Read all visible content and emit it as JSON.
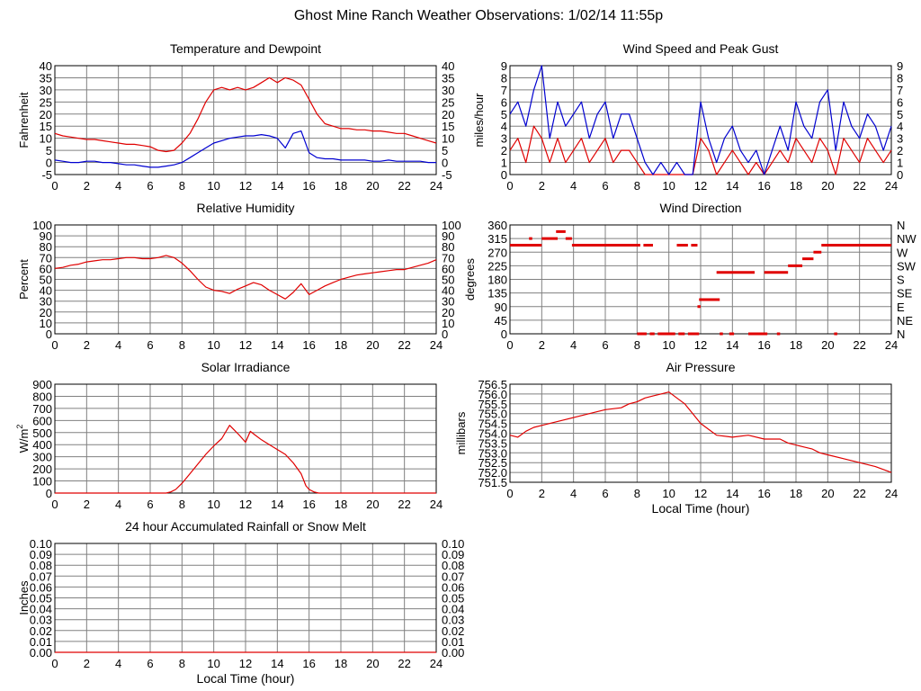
{
  "page": {
    "title": "Ghost Mine Ranch Weather Observations: 1/02/14 11:55p"
  },
  "colors": {
    "series_red": "#e00000",
    "series_blue": "#0000d0",
    "grid": "#808080",
    "frame": "#000000"
  },
  "chart_data": [
    {
      "id": "temperature",
      "type": "line",
      "title": "Temperature and Dewpoint",
      "ylabel": "Fahrenheit",
      "xlabel": "",
      "xlim": [
        0,
        24
      ],
      "ylim": [
        -5,
        40
      ],
      "x_ticks": [
        "0",
        "2",
        "4",
        "6",
        "8",
        "10",
        "12",
        "14",
        "16",
        "18",
        "20",
        "22",
        "24"
      ],
      "y_ticks": [
        "-5",
        "0",
        "5",
        "10",
        "15",
        "20",
        "25",
        "30",
        "35",
        "40"
      ],
      "y_ticks_right": [
        "-5",
        "0",
        "5",
        "10",
        "15",
        "20",
        "25",
        "30",
        "35",
        "40"
      ],
      "grid": true,
      "series": [
        {
          "color": "#e00000",
          "x": [
            0,
            0.5,
            1,
            1.5,
            2,
            2.5,
            3,
            3.5,
            4,
            4.5,
            5,
            5.5,
            6,
            6.5,
            7,
            7.5,
            8,
            8.5,
            9,
            9.5,
            10,
            10.5,
            11,
            11.5,
            12,
            12.5,
            13,
            13.5,
            14,
            14.5,
            15,
            15.5,
            16,
            16.5,
            17,
            17.5,
            18,
            18.5,
            19,
            19.5,
            20,
            20.5,
            21,
            21.5,
            22,
            22.5,
            23,
            23.5,
            24
          ],
          "y": [
            12,
            11,
            10.5,
            10,
            9.5,
            9.5,
            9,
            8.5,
            8,
            7.5,
            7.5,
            7,
            6.5,
            5,
            4.5,
            5,
            8,
            12,
            18,
            25,
            30,
            31,
            30,
            31,
            30,
            31,
            33,
            35,
            33,
            35,
            34,
            32,
            26,
            20,
            16,
            15,
            14,
            14,
            13.5,
            13.5,
            13,
            13,
            12.5,
            12,
            12,
            11,
            10,
            9,
            8
          ]
        },
        {
          "color": "#0000d0",
          "x": [
            0,
            0.5,
            1,
            1.5,
            2,
            2.5,
            3,
            3.5,
            4,
            4.5,
            5,
            5.5,
            6,
            6.5,
            7,
            7.5,
            8,
            8.5,
            9,
            9.5,
            10,
            10.5,
            11,
            11.5,
            12,
            12.5,
            13,
            13.5,
            14,
            14.5,
            15,
            15.5,
            16,
            16.5,
            17,
            17.5,
            18,
            18.5,
            19,
            19.5,
            20,
            20.5,
            21,
            21.5,
            22,
            22.5,
            23,
            23.5,
            24
          ],
          "y": [
            1,
            0.5,
            0,
            0,
            0.5,
            0.5,
            0,
            0,
            -0.5,
            -1,
            -1,
            -1.5,
            -2,
            -2,
            -1.5,
            -1,
            0,
            2,
            4,
            6,
            8,
            9,
            10,
            10.5,
            11,
            11,
            11.5,
            11,
            10,
            6,
            12,
            13,
            4,
            2,
            1.5,
            1.5,
            1,
            1,
            1,
            1,
            0.5,
            0.5,
            1,
            0.5,
            0.5,
            0.5,
            0.5,
            0,
            0
          ]
        }
      ]
    },
    {
      "id": "wind_speed",
      "type": "line",
      "title": "Wind Speed and Peak Gust",
      "ylabel": "miles/hour",
      "xlabel": "",
      "xlim": [
        0,
        24
      ],
      "ylim": [
        0,
        9
      ],
      "x_ticks": [
        "0",
        "2",
        "4",
        "6",
        "8",
        "10",
        "12",
        "14",
        "16",
        "18",
        "20",
        "22",
        "24"
      ],
      "y_ticks": [
        "0",
        "1",
        "2",
        "3",
        "4",
        "5",
        "6",
        "7",
        "8",
        "9"
      ],
      "y_ticks_right": [
        "0",
        "1",
        "2",
        "3",
        "4",
        "5",
        "6",
        "7",
        "8",
        "9"
      ],
      "grid": true,
      "series": [
        {
          "color": "#e00000",
          "x": [
            0,
            0.5,
            1,
            1.5,
            2,
            2.5,
            3,
            3.5,
            4,
            4.5,
            5,
            5.5,
            6,
            6.5,
            7,
            7.5,
            8,
            8.5,
            9,
            9.5,
            10,
            10.5,
            11,
            11.5,
            12,
            12.5,
            13,
            13.5,
            14,
            14.5,
            15,
            15.5,
            16,
            16.5,
            17,
            17.5,
            18,
            18.5,
            19,
            19.5,
            20,
            20.5,
            21,
            21.5,
            22,
            22.5,
            23,
            23.5,
            24
          ],
          "y": [
            2,
            3,
            1,
            4,
            3,
            1,
            3,
            1,
            2,
            3,
            1,
            2,
            3,
            1,
            2,
            2,
            1,
            0,
            0,
            0,
            0,
            0,
            0,
            0,
            3,
            2,
            0,
            1,
            2,
            1,
            0,
            1,
            0,
            1,
            2,
            1,
            3,
            2,
            1,
            3,
            2,
            0,
            3,
            2,
            1,
            3,
            2,
            1,
            2
          ]
        },
        {
          "color": "#0000d0",
          "x": [
            0,
            0.5,
            1,
            1.5,
            2,
            2.5,
            3,
            3.5,
            4,
            4.5,
            5,
            5.5,
            6,
            6.5,
            7,
            7.5,
            8,
            8.5,
            9,
            9.5,
            10,
            10.5,
            11,
            11.5,
            12,
            12.5,
            13,
            13.5,
            14,
            14.5,
            15,
            15.5,
            16,
            16.5,
            17,
            17.5,
            18,
            18.5,
            19,
            19.5,
            20,
            20.5,
            21,
            21.5,
            22,
            22.5,
            23,
            23.5,
            24
          ],
          "y": [
            5,
            6,
            4,
            7,
            9,
            3,
            6,
            4,
            5,
            6,
            3,
            5,
            6,
            3,
            5,
            5,
            3,
            1,
            0,
            1,
            0,
            1,
            0,
            0,
            6,
            3,
            1,
            3,
            4,
            2,
            1,
            2,
            0,
            2,
            4,
            2,
            6,
            4,
            3,
            6,
            7,
            2,
            6,
            4,
            3,
            5,
            4,
            2,
            4
          ]
        }
      ]
    },
    {
      "id": "humidity",
      "type": "line",
      "title": "Relative Humidity",
      "ylabel": "Percent",
      "xlabel": "",
      "xlim": [
        0,
        24
      ],
      "ylim": [
        0,
        100
      ],
      "x_ticks": [
        "0",
        "2",
        "4",
        "6",
        "8",
        "10",
        "12",
        "14",
        "16",
        "18",
        "20",
        "22",
        "24"
      ],
      "y_ticks": [
        "0",
        "10",
        "20",
        "30",
        "40",
        "50",
        "60",
        "70",
        "80",
        "90",
        "100"
      ],
      "y_ticks_right": [
        "0",
        "10",
        "20",
        "30",
        "40",
        "50",
        "60",
        "70",
        "80",
        "90",
        "100"
      ],
      "grid": true,
      "series": [
        {
          "color": "#e00000",
          "x": [
            0,
            0.5,
            1,
            1.5,
            2,
            2.5,
            3,
            3.5,
            4,
            4.5,
            5,
            5.5,
            6,
            6.5,
            7,
            7.5,
            8,
            8.5,
            9,
            9.5,
            10,
            10.5,
            11,
            11.5,
            12,
            12.5,
            13,
            13.5,
            14,
            14.5,
            15,
            15.5,
            16,
            16.5,
            17,
            17.5,
            18,
            18.5,
            19,
            19.5,
            20,
            20.5,
            21,
            21.5,
            22,
            22.5,
            23,
            23.5,
            24
          ],
          "y": [
            60,
            61,
            63,
            64,
            66,
            67,
            68,
            68,
            69,
            70,
            70,
            69,
            69,
            70,
            72,
            70,
            65,
            58,
            50,
            43,
            40,
            39,
            37,
            41,
            44,
            47,
            45,
            40,
            36,
            32,
            38,
            46,
            36,
            40,
            44,
            47,
            50,
            52,
            54,
            55,
            56,
            57,
            58,
            59,
            59,
            61,
            63,
            65,
            68
          ]
        }
      ]
    },
    {
      "id": "wind_direction",
      "type": "scatter",
      "title": "Wind Direction",
      "ylabel": "degrees",
      "xlabel": "",
      "xlim": [
        0,
        24
      ],
      "ylim": [
        0,
        360
      ],
      "x_ticks": [
        "0",
        "2",
        "4",
        "6",
        "8",
        "10",
        "12",
        "14",
        "16",
        "18",
        "20",
        "22",
        "24"
      ],
      "y_ticks": [
        "0",
        "45",
        "90",
        "135",
        "180",
        "225",
        "270",
        "315",
        "360"
      ],
      "y_ticks_right": [
        "N",
        "NE",
        "E",
        "SE",
        "S",
        "SW",
        "W",
        "NW",
        "N"
      ],
      "grid": true,
      "segments": [
        {
          "x0": 0,
          "x1": 2.0,
          "y": 293
        },
        {
          "x0": 1.2,
          "x1": 1.4,
          "y": 315
        },
        {
          "x0": 2.0,
          "x1": 3.0,
          "y": 315
        },
        {
          "x0": 2.9,
          "x1": 3.5,
          "y": 338
        },
        {
          "x0": 3.5,
          "x1": 3.9,
          "y": 315
        },
        {
          "x0": 3.9,
          "x1": 8.2,
          "y": 293
        },
        {
          "x0": 8.4,
          "x1": 9.0,
          "y": 293
        },
        {
          "x0": 10.5,
          "x1": 11.2,
          "y": 293
        },
        {
          "x0": 11.4,
          "x1": 11.8,
          "y": 293
        },
        {
          "x0": 8.0,
          "x1": 8.6,
          "y": 0
        },
        {
          "x0": 8.8,
          "x1": 9.1,
          "y": 0
        },
        {
          "x0": 9.3,
          "x1": 10.4,
          "y": 0
        },
        {
          "x0": 10.6,
          "x1": 11.0,
          "y": 0
        },
        {
          "x0": 11.2,
          "x1": 11.9,
          "y": 0
        },
        {
          "x0": 11.8,
          "x1": 12.0,
          "y": 90
        },
        {
          "x0": 11.9,
          "x1": 13.2,
          "y": 113
        },
        {
          "x0": 13.0,
          "x1": 15.4,
          "y": 203
        },
        {
          "x0": 13.2,
          "x1": 13.4,
          "y": 0
        },
        {
          "x0": 13.8,
          "x1": 14.1,
          "y": 0
        },
        {
          "x0": 15.0,
          "x1": 16.2,
          "y": 0
        },
        {
          "x0": 16.8,
          "x1": 17.0,
          "y": 0
        },
        {
          "x0": 16.0,
          "x1": 17.5,
          "y": 203
        },
        {
          "x0": 17.5,
          "x1": 18.4,
          "y": 225
        },
        {
          "x0": 18.4,
          "x1": 19.1,
          "y": 248
        },
        {
          "x0": 19.1,
          "x1": 19.6,
          "y": 270
        },
        {
          "x0": 19.6,
          "x1": 24.0,
          "y": 293
        },
        {
          "x0": 20.4,
          "x1": 20.6,
          "y": 0
        }
      ]
    },
    {
      "id": "solar",
      "type": "area",
      "title": "Solar Irradiance",
      "ylabel": "W/m",
      "ylabel_sup": "2",
      "xlabel": "",
      "xlim": [
        0,
        24
      ],
      "ylim": [
        0,
        900
      ],
      "x_ticks": [
        "0",
        "2",
        "4",
        "6",
        "8",
        "10",
        "12",
        "14",
        "16",
        "18",
        "20",
        "22",
        "24"
      ],
      "y_ticks": [
        "0",
        "100",
        "200",
        "300",
        "400",
        "500",
        "600",
        "700",
        "800",
        "900"
      ],
      "grid": true,
      "series": [
        {
          "color": "#e00000",
          "x": [
            0,
            7,
            7.3,
            7.6,
            8,
            8.5,
            9,
            9.5,
            10,
            10.5,
            11,
            11.3,
            11.6,
            12,
            12.3,
            12.6,
            13,
            13.5,
            14,
            14.5,
            15,
            15.5,
            15.8,
            16,
            16.3,
            16.6,
            17,
            24
          ],
          "y": [
            0,
            0,
            10,
            30,
            80,
            160,
            240,
            320,
            390,
            450,
            560,
            520,
            480,
            420,
            510,
            480,
            440,
            400,
            360,
            320,
            250,
            160,
            60,
            30,
            10,
            0,
            0,
            0
          ]
        }
      ]
    },
    {
      "id": "pressure",
      "type": "line",
      "title": "Air Pressure",
      "ylabel": "millibars",
      "xlabel": "Local Time (hour)",
      "xlim": [
        0,
        24
      ],
      "ylim": [
        751.5,
        756.5
      ],
      "x_ticks": [
        "0",
        "2",
        "4",
        "6",
        "8",
        "10",
        "12",
        "14",
        "16",
        "18",
        "20",
        "22",
        "24"
      ],
      "y_ticks": [
        "751.5",
        "752.0",
        "752.5",
        "753.0",
        "753.5",
        "754.0",
        "754.5",
        "755.0",
        "755.5",
        "756.0",
        "756.5"
      ],
      "grid": true,
      "series": [
        {
          "color": "#e00000",
          "x": [
            0,
            0.5,
            1,
            1.5,
            2,
            3,
            4,
            5,
            6,
            7,
            7.5,
            8,
            8.5,
            9,
            9.5,
            10,
            10.5,
            11,
            11.5,
            12,
            12.5,
            13,
            14,
            15,
            16,
            17,
            17.5,
            18,
            18.5,
            19,
            19.5,
            20,
            21,
            22,
            23,
            24
          ],
          "y": [
            753.9,
            753.8,
            754.1,
            754.3,
            754.4,
            754.6,
            754.8,
            755.0,
            755.2,
            755.3,
            755.5,
            755.6,
            755.8,
            755.9,
            756.0,
            756.1,
            755.8,
            755.5,
            755.0,
            754.5,
            754.2,
            753.9,
            753.8,
            753.9,
            753.7,
            753.7,
            753.5,
            753.4,
            753.3,
            753.2,
            753.0,
            752.9,
            752.7,
            752.5,
            752.3,
            752.0
          ]
        }
      ]
    },
    {
      "id": "rainfall",
      "type": "line",
      "title": "24 hour Accumulated Rainfall or Snow Melt",
      "ylabel": "Inches",
      "xlabel": "Local Time (hour)",
      "xlim": [
        0,
        24
      ],
      "ylim": [
        0,
        0.1
      ],
      "x_ticks": [
        "0",
        "2",
        "4",
        "6",
        "8",
        "10",
        "12",
        "14",
        "16",
        "18",
        "20",
        "22",
        "24"
      ],
      "y_ticks": [
        "0.00",
        "0.01",
        "0.02",
        "0.03",
        "0.04",
        "0.05",
        "0.06",
        "0.07",
        "0.08",
        "0.09",
        "0.10"
      ],
      "y_ticks_right": [
        "0.00",
        "0.01",
        "0.02",
        "0.03",
        "0.04",
        "0.05",
        "0.06",
        "0.07",
        "0.08",
        "0.09",
        "0.10"
      ],
      "grid": true,
      "series": [
        {
          "color": "#e00000",
          "x": [
            0,
            24
          ],
          "y": [
            0,
            0
          ]
        }
      ]
    }
  ]
}
